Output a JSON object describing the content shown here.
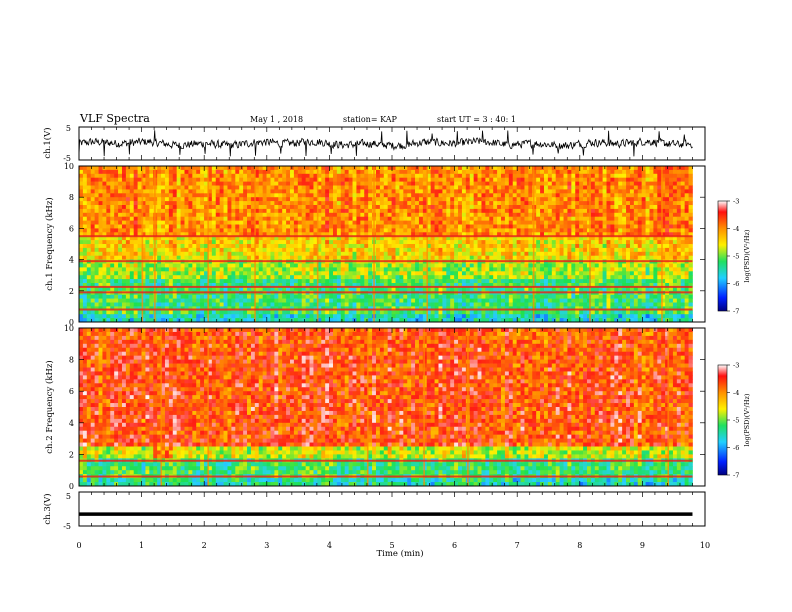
{
  "header": {
    "title": "VLF Spectra",
    "date": "May 1 , 2018",
    "station": "station= KAP",
    "start_time": "start UT = 3 : 40: 1"
  },
  "chart_data": [
    {
      "type": "line",
      "ylabel": "ch.1(V)",
      "ylim": [
        -5,
        5
      ],
      "yticks": [
        "5",
        "-5"
      ],
      "xlim": [
        0,
        10
      ],
      "series": [
        {
          "description": "noisy voltage trace fluctuating roughly between -2 and 2 V"
        }
      ]
    },
    {
      "type": "heatmap",
      "ylabel": "ch.1 Frequency (kHz)",
      "ylim": [
        0,
        10
      ],
      "yticks": [
        "0",
        "2",
        "4",
        "6",
        "8",
        "10"
      ],
      "xlim": [
        0,
        10
      ],
      "colorbar": {
        "label": "log(PSD)(V²/Hz)",
        "ticks": [
          "-3",
          "-4",
          "-5",
          "-6",
          "-7"
        ],
        "range": [
          -7,
          -3
        ]
      },
      "horizontal_lines_khz": [
        3.9,
        5.5,
        2.25,
        1.9,
        0.8
      ],
      "vertical_bands_min": [
        1.0,
        1.2,
        2.05,
        2.8,
        3.8,
        4.7,
        5.55,
        7.25,
        8.15,
        9.3
      ]
    },
    {
      "type": "heatmap",
      "ylabel": "ch.2 Frequency (kHz)",
      "ylim": [
        0,
        10
      ],
      "yticks": [
        "0",
        "2",
        "4",
        "6",
        "8",
        "10"
      ],
      "xlim": [
        0,
        10
      ],
      "colorbar": {
        "label": "log(PSD)(V²/Hz)",
        "ticks": [
          "-3",
          "-4",
          "-5",
          "-6",
          "-7"
        ],
        "range": [
          -7,
          -3
        ]
      },
      "horizontal_lines_khz": [
        1.6,
        0.6
      ],
      "vertical_bands_min": [
        1.3,
        2.05,
        4.6,
        5.5,
        6.2,
        9.4
      ]
    },
    {
      "type": "line",
      "ylabel": "ch.3(V)",
      "ylim": [
        -5,
        5
      ],
      "yticks": [
        "5",
        "-5"
      ],
      "xlim": [
        0,
        10
      ],
      "series": [
        {
          "description": "flat line at about -1.5 V",
          "value": -1.5
        }
      ]
    }
  ],
  "x_axis": {
    "label": "Time (min)",
    "ticks": [
      "0",
      "1",
      "2",
      "3",
      "4",
      "5",
      "6",
      "7",
      "8",
      "9",
      "10"
    ],
    "data_end_min": 9.8
  },
  "colors": {
    "red": "#ff2a1a",
    "orange": "#ffa500",
    "yellow": "#ffe600",
    "green": "#19e04a",
    "cyan": "#3fe0ff",
    "blue": "#0a3cff",
    "black": "#000000"
  }
}
